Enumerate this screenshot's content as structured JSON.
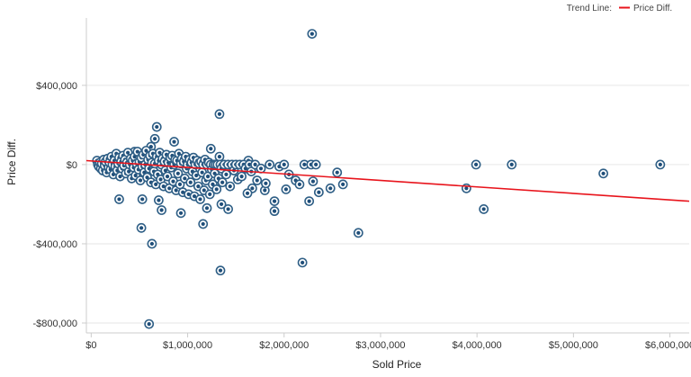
{
  "legend": {
    "label": "Trend Line:",
    "series_name": "Price Diff.",
    "line_color": "#e8141c"
  },
  "chart_data": {
    "type": "scatter",
    "xlabel": "Sold Price",
    "ylabel": "Price Diff.",
    "xlim": [
      -50000,
      6200000
    ],
    "ylim": [
      -850000,
      740000
    ],
    "x_ticks": [
      0,
      1000000,
      2000000,
      3000000,
      4000000,
      5000000,
      6000000
    ],
    "x_tick_labels": [
      "$0",
      "$1,000,000",
      "$2,000,000",
      "$3,000,000",
      "$4,000,000",
      "$5,000,000",
      "$6,000,000"
    ],
    "y_ticks": [
      400000,
      0,
      -400000,
      -800000
    ],
    "y_tick_labels": [
      "$400,000",
      "$0",
      "-$400,000",
      "-$800,000"
    ],
    "grid": "horizontal",
    "marker_color": "#1f4e79",
    "trend_line": {
      "name": "Price Diff.",
      "color": "#e8141c",
      "x": [
        -50000,
        6200000
      ],
      "y": [
        20000,
        -185000
      ]
    },
    "points": [
      [
        2290000,
        660000
      ],
      [
        1330000,
        255000
      ],
      [
        680000,
        190000
      ],
      [
        660000,
        130000
      ],
      [
        860000,
        115000
      ],
      [
        620000,
        90000
      ],
      [
        450000,
        65000
      ],
      [
        1240000,
        80000
      ],
      [
        1330000,
        40000
      ],
      [
        1630000,
        20000
      ],
      [
        2210000,
        0
      ],
      [
        2280000,
        0
      ],
      [
        2330000,
        0
      ],
      [
        2550000,
        -40000
      ],
      [
        2050000,
        -50000
      ],
      [
        2120000,
        -80000
      ],
      [
        2160000,
        -100000
      ],
      [
        2300000,
        -85000
      ],
      [
        2610000,
        -100000
      ],
      [
        2480000,
        -120000
      ],
      [
        2360000,
        -140000
      ],
      [
        2020000,
        -125000
      ],
      [
        1800000,
        -130000
      ],
      [
        1670000,
        -120000
      ],
      [
        1810000,
        -95000
      ],
      [
        1900000,
        -185000
      ],
      [
        1350000,
        -200000
      ],
      [
        2260000,
        -185000
      ],
      [
        1200000,
        -220000
      ],
      [
        1420000,
        -225000
      ],
      [
        1900000,
        -235000
      ],
      [
        1160000,
        -300000
      ],
      [
        520000,
        -320000
      ],
      [
        2190000,
        -495000
      ],
      [
        1340000,
        -535000
      ],
      [
        2770000,
        -345000
      ],
      [
        630000,
        -400000
      ],
      [
        600000,
        -805000
      ],
      [
        730000,
        -230000
      ],
      [
        700000,
        -180000
      ],
      [
        290000,
        -175000
      ],
      [
        930000,
        -245000
      ],
      [
        530000,
        -175000
      ],
      [
        3990000,
        0
      ],
      [
        4360000,
        0
      ],
      [
        5900000,
        0
      ],
      [
        5310000,
        -45000
      ],
      [
        3890000,
        -120000
      ],
      [
        4070000,
        -225000
      ],
      [
        60000,
        20000
      ],
      [
        70000,
        0
      ],
      [
        80000,
        -10000
      ],
      [
        90000,
        10000
      ],
      [
        100000,
        -20000
      ],
      [
        110000,
        5000
      ],
      [
        120000,
        -30000
      ],
      [
        130000,
        25000
      ],
      [
        140000,
        -5000
      ],
      [
        150000,
        15000
      ],
      [
        160000,
        -40000
      ],
      [
        170000,
        30000
      ],
      [
        180000,
        -15000
      ],
      [
        190000,
        10000
      ],
      [
        200000,
        -25000
      ],
      [
        210000,
        40000
      ],
      [
        220000,
        0
      ],
      [
        230000,
        -50000
      ],
      [
        240000,
        20000
      ],
      [
        250000,
        -10000
      ],
      [
        260000,
        55000
      ],
      [
        270000,
        -30000
      ],
      [
        280000,
        5000
      ],
      [
        290000,
        35000
      ],
      [
        300000,
        -60000
      ],
      [
        310000,
        15000
      ],
      [
        320000,
        -20000
      ],
      [
        330000,
        45000
      ],
      [
        340000,
        -5000
      ],
      [
        350000,
        25000
      ],
      [
        360000,
        -45000
      ],
      [
        370000,
        10000
      ],
      [
        380000,
        60000
      ],
      [
        390000,
        -35000
      ],
      [
        400000,
        0
      ],
      [
        410000,
        30000
      ],
      [
        420000,
        -70000
      ],
      [
        430000,
        20000
      ],
      [
        440000,
        -15000
      ],
      [
        450000,
        40000
      ],
      [
        460000,
        -55000
      ],
      [
        470000,
        5000
      ],
      [
        480000,
        65000
      ],
      [
        490000,
        -25000
      ],
      [
        500000,
        15000
      ],
      [
        510000,
        -80000
      ],
      [
        520000,
        35000
      ],
      [
        530000,
        -10000
      ],
      [
        540000,
        50000
      ],
      [
        550000,
        -40000
      ],
      [
        560000,
        0
      ],
      [
        570000,
        70000
      ],
      [
        580000,
        -65000
      ],
      [
        590000,
        25000
      ],
      [
        600000,
        -20000
      ],
      [
        610000,
        45000
      ],
      [
        620000,
        -90000
      ],
      [
        630000,
        10000
      ],
      [
        640000,
        55000
      ],
      [
        650000,
        -35000
      ],
      [
        660000,
        5000
      ],
      [
        670000,
        -100000
      ],
      [
        680000,
        40000
      ],
      [
        690000,
        -50000
      ],
      [
        700000,
        20000
      ],
      [
        710000,
        60000
      ],
      [
        720000,
        -75000
      ],
      [
        730000,
        0
      ],
      [
        740000,
        30000
      ],
      [
        750000,
        -110000
      ],
      [
        760000,
        15000
      ],
      [
        770000,
        -30000
      ],
      [
        780000,
        50000
      ],
      [
        790000,
        -60000
      ],
      [
        800000,
        10000
      ],
      [
        810000,
        -120000
      ],
      [
        820000,
        35000
      ],
      [
        830000,
        -15000
      ],
      [
        840000,
        45000
      ],
      [
        850000,
        -85000
      ],
      [
        860000,
        0
      ],
      [
        870000,
        25000
      ],
      [
        880000,
        -130000
      ],
      [
        890000,
        20000
      ],
      [
        900000,
        -45000
      ],
      [
        910000,
        55000
      ],
      [
        920000,
        -100000
      ],
      [
        930000,
        5000
      ],
      [
        940000,
        30000
      ],
      [
        950000,
        -140000
      ],
      [
        960000,
        15000
      ],
      [
        970000,
        -70000
      ],
      [
        980000,
        40000
      ],
      [
        990000,
        -20000
      ],
      [
        1000000,
        0
      ],
      [
        1010000,
        -150000
      ],
      [
        1020000,
        25000
      ],
      [
        1030000,
        -90000
      ],
      [
        1040000,
        10000
      ],
      [
        1050000,
        -35000
      ],
      [
        1060000,
        35000
      ],
      [
        1070000,
        -160000
      ],
      [
        1080000,
        0
      ],
      [
        1090000,
        -55000
      ],
      [
        1100000,
        20000
      ],
      [
        1110000,
        -110000
      ],
      [
        1120000,
        5000
      ],
      [
        1130000,
        -175000
      ],
      [
        1140000,
        15000
      ],
      [
        1150000,
        -40000
      ],
      [
        1160000,
        0
      ],
      [
        1170000,
        -130000
      ],
      [
        1180000,
        25000
      ],
      [
        1190000,
        -80000
      ],
      [
        1200000,
        0
      ],
      [
        1210000,
        -60000
      ],
      [
        1220000,
        10000
      ],
      [
        1230000,
        -150000
      ],
      [
        1240000,
        0
      ],
      [
        1250000,
        -25000
      ],
      [
        1260000,
        -100000
      ],
      [
        1270000,
        0
      ],
      [
        1280000,
        -45000
      ],
      [
        1290000,
        0
      ],
      [
        1300000,
        -125000
      ],
      [
        1310000,
        0
      ],
      [
        1320000,
        -70000
      ],
      [
        1340000,
        0
      ],
      [
        1350000,
        -20000
      ],
      [
        1360000,
        -90000
      ],
      [
        1380000,
        0
      ],
      [
        1400000,
        -50000
      ],
      [
        1420000,
        0
      ],
      [
        1440000,
        -110000
      ],
      [
        1460000,
        0
      ],
      [
        1480000,
        -30000
      ],
      [
        1500000,
        0
      ],
      [
        1520000,
        -75000
      ],
      [
        1540000,
        0
      ],
      [
        1560000,
        -60000
      ],
      [
        1580000,
        0
      ],
      [
        1600000,
        -20000
      ],
      [
        1620000,
        -145000
      ],
      [
        1640000,
        0
      ],
      [
        1660000,
        -35000
      ],
      [
        1700000,
        0
      ],
      [
        1720000,
        -80000
      ],
      [
        1760000,
        -20000
      ],
      [
        1850000,
        0
      ],
      [
        1950000,
        -10000
      ],
      [
        2000000,
        0
      ]
    ]
  }
}
